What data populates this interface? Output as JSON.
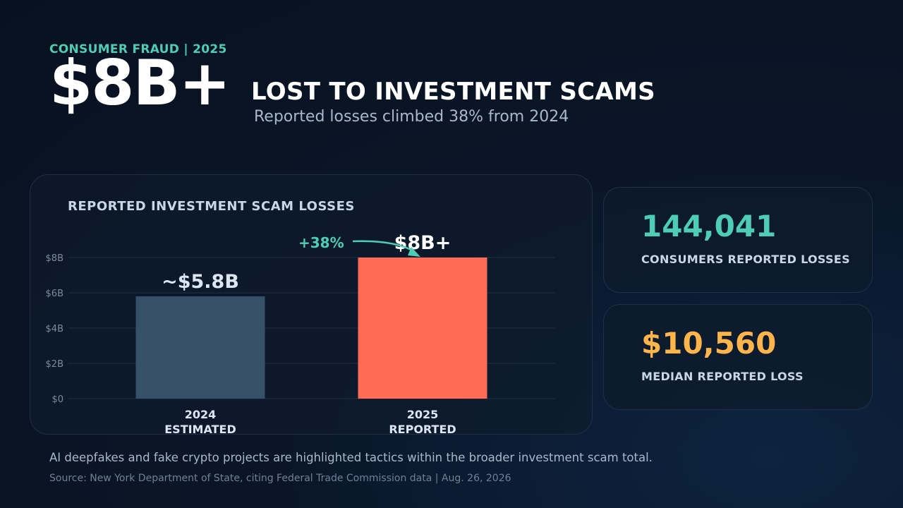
{
  "header": {
    "eyebrow": "CONSUMER FRAUD | 2025",
    "big_number": "$8B+",
    "headline": "LOST TO INVESTMENT SCAMS",
    "subhead": "Reported losses climbed 38% from 2024"
  },
  "chart_data": {
    "type": "bar",
    "title": "REPORTED INVESTMENT SCAM LOSSES",
    "categories": [
      [
        "2024",
        "ESTIMATED"
      ],
      [
        "2025",
        "REPORTED"
      ]
    ],
    "values": [
      5.8,
      8
    ],
    "value_labels": [
      "~$5.8B",
      "$8B+"
    ],
    "bar_colors": [
      "#355068",
      "#ff6b55"
    ],
    "ylim": [
      0,
      8
    ],
    "yticks": [
      0,
      2,
      4,
      6,
      8
    ],
    "ytick_labels": [
      "$0",
      "$2B",
      "$4B",
      "$6B",
      "$8B"
    ],
    "grid": true,
    "annotation": {
      "text": "+38%",
      "color": "#4ecdb4"
    },
    "xlabel": "",
    "ylabel": ""
  },
  "stats": [
    {
      "value": "144,041",
      "label": "CONSUMERS REPORTED LOSSES",
      "color": "#4ecdb4"
    },
    {
      "value": "$10,560",
      "label": "MEDIAN REPORTED LOSS",
      "color": "#fdb44b"
    }
  ],
  "footer": {
    "note": "AI deepfakes and fake crypto projects are highlighted tactics within the broader investment scam total.",
    "source": "Source: New York Department of State, citing Federal Trade Commission data | Aug. 26, 2026"
  }
}
